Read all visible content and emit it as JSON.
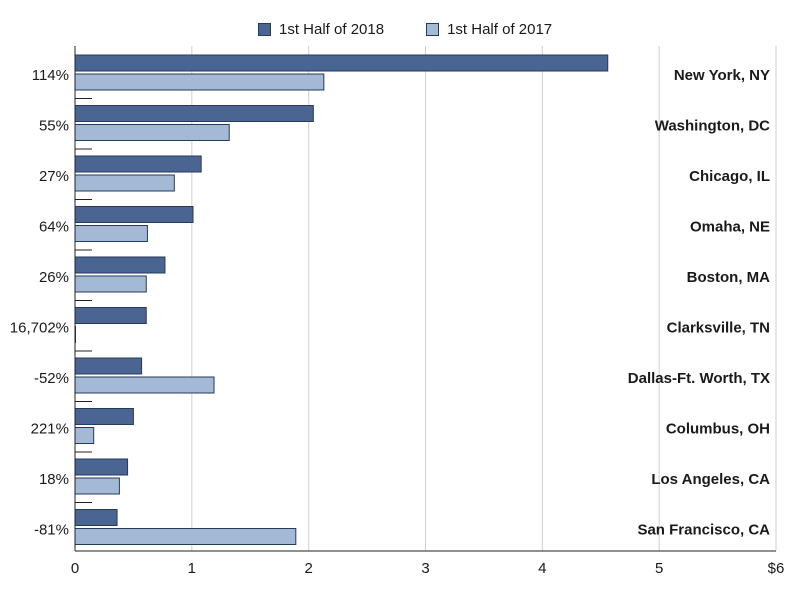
{
  "legend": {
    "series_2018": "1st Half of 2018",
    "series_2017": "1st Half of 2017"
  },
  "colors": {
    "series_2018": "#4a6591",
    "series_2017": "#a3b9d6",
    "bar_stroke": "#243a5e",
    "grid": "#cfcfcf",
    "axis": "#222222"
  },
  "chart_data": {
    "type": "bar",
    "orientation": "horizontal",
    "categories": [
      "New York, NY",
      "Washington, DC",
      "Chicago, IL",
      "Omaha, NE",
      "Boston, MA",
      "Clarksville, TN",
      "Dallas-Ft. Worth, TX",
      "Columbus, OH",
      "Los Angeles, CA",
      "San Francisco, CA"
    ],
    "change_labels": [
      "114%",
      "55%",
      "27%",
      "64%",
      "26%",
      "16,702%",
      "-52%",
      "221%",
      "18%",
      "-81%"
    ],
    "series": [
      {
        "name": "1st Half of 2018",
        "values": [
          4.56,
          2.04,
          1.08,
          1.01,
          0.77,
          0.61,
          0.57,
          0.5,
          0.45,
          0.36
        ]
      },
      {
        "name": "1st Half of 2017",
        "values": [
          2.13,
          1.32,
          0.85,
          0.62,
          0.61,
          0.004,
          1.19,
          0.16,
          0.38,
          1.89
        ]
      }
    ],
    "x_ticks": [
      "0",
      "1",
      "2",
      "3",
      "4",
      "5",
      "$6"
    ],
    "xlim": [
      0,
      6
    ],
    "grid": true,
    "legend_position": "top"
  }
}
